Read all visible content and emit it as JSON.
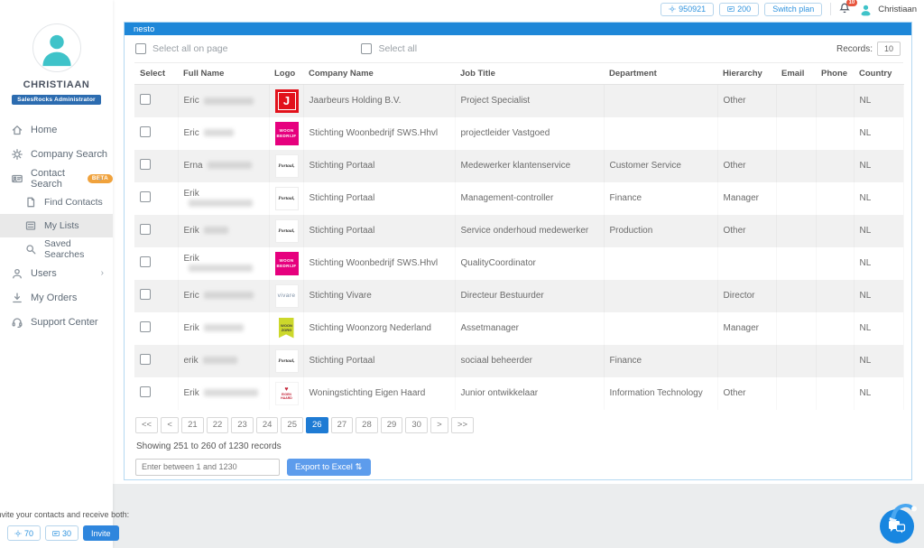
{
  "topbar": {
    "credits_value": "950921",
    "email_credits_value": "200",
    "switch_plan_label": "Switch plan",
    "notification_count": "10",
    "user_name": "Christiaan"
  },
  "sidebar": {
    "user_name": "CHRISTIAAN",
    "user_role_badge": "SalesRocks Administrator",
    "items": [
      {
        "label": "Home",
        "icon": "home-icon"
      },
      {
        "label": "Company Search",
        "icon": "gear-icon",
        "chevron": "›"
      },
      {
        "label": "Contact Search",
        "icon": "id-card-icon",
        "badge": "BETA",
        "chevron": "⌄"
      },
      {
        "label": "Find Contacts",
        "icon": "document-icon",
        "sub": true
      },
      {
        "label": "My Lists",
        "icon": "list-icon",
        "sub": true,
        "active": true
      },
      {
        "label": "Saved Searches",
        "icon": "search-icon",
        "sub": true
      },
      {
        "label": "Users",
        "icon": "user-icon",
        "chevron": "›"
      },
      {
        "label": "My Orders",
        "icon": "download-icon"
      },
      {
        "label": "Support Center",
        "icon": "headset-icon"
      }
    ]
  },
  "panel": {
    "title": "nesto",
    "select_all_on_page_label": "Select all on page",
    "select_all_label": "Select all",
    "records_label": "Records:",
    "records_value": "10",
    "table": {
      "columns": [
        "Select",
        "Full Name",
        "Logo",
        "Company Name",
        "Job Title",
        "Department",
        "Hierarchy",
        "Email",
        "Phone",
        "Country"
      ],
      "rows": [
        {
          "first_name": "Eric",
          "redacted_len": 10,
          "logo": "jaarbeurs",
          "company": "Jaarbeurs Holding B.V.",
          "job_title": "Project Specialist",
          "department": "",
          "hierarchy": "Other",
          "email": "",
          "phone": "",
          "country": "NL"
        },
        {
          "first_name": "Eric",
          "redacted_len": 6,
          "logo": "woonbedrijf",
          "company": "Stichting Woonbedrijf SWS.Hhvl",
          "job_title": "projectleider Vastgoed",
          "department": "",
          "hierarchy": "",
          "email": "",
          "phone": "",
          "country": "NL"
        },
        {
          "first_name": "Erna",
          "redacted_len": 9,
          "logo": "portaal",
          "company": "Stichting Portaal",
          "job_title": "Medewerker klantenservice",
          "department": "Customer Service",
          "hierarchy": "Other",
          "email": "",
          "phone": "",
          "country": "NL"
        },
        {
          "first_name": "Erik",
          "redacted_len": 13,
          "logo": "portaal",
          "company": "Stichting Portaal",
          "job_title": "Management-controller",
          "department": "Finance",
          "hierarchy": "Manager",
          "email": "",
          "phone": "",
          "country": "NL"
        },
        {
          "first_name": "Erik",
          "redacted_len": 5,
          "logo": "portaal",
          "company": "Stichting Portaal",
          "job_title": "Service onderhoud medewerker",
          "department": "Production",
          "hierarchy": "Other",
          "email": "",
          "phone": "",
          "country": "NL"
        },
        {
          "first_name": "Erik",
          "redacted_len": 13,
          "logo": "woonbedrijf",
          "company": "Stichting Woonbedrijf SWS.Hhvl",
          "job_title": "QualityCoordinator",
          "department": "",
          "hierarchy": "",
          "email": "",
          "phone": "",
          "country": "NL"
        },
        {
          "first_name": "Eric",
          "redacted_len": 10,
          "logo": "vivare",
          "company": "Stichting Vivare",
          "job_title": "Directeur Bestuurder",
          "department": "",
          "hierarchy": "Director",
          "email": "",
          "phone": "",
          "country": "NL"
        },
        {
          "first_name": "Erik",
          "redacted_len": 8,
          "logo": "woonzorg",
          "company": "Stichting Woonzorg Nederland",
          "job_title": "Assetmanager",
          "department": "",
          "hierarchy": "Manager",
          "email": "",
          "phone": "",
          "country": "NL"
        },
        {
          "first_name": "erik",
          "redacted_len": 7,
          "logo": "portaal",
          "company": "Stichting Portaal",
          "job_title": "sociaal beheerder",
          "department": "Finance",
          "hierarchy": "",
          "email": "",
          "phone": "",
          "country": "NL"
        },
        {
          "first_name": "Erik",
          "redacted_len": 11,
          "logo": "eigenhaard",
          "company": "Woningstichting Eigen Haard",
          "job_title": "Junior ontwikkelaar",
          "department": "Information Technology",
          "hierarchy": "Other",
          "email": "",
          "phone": "",
          "country": "NL"
        }
      ]
    },
    "logos": {
      "jaarbeurs": {
        "bg": "#e2111b",
        "color": "#ffffff",
        "lines": [
          "J"
        ]
      },
      "woonbedrijf": {
        "bg": "#e6007e",
        "color": "#ffffff",
        "lines": [
          "WOON",
          "BEDRIJF"
        ]
      },
      "portaal": {
        "bg": "#ffffff",
        "color": "#3a3a3a",
        "lines": [
          "Portaal,"
        ]
      },
      "vivare": {
        "bg": "#ffffff",
        "color": "#7d8fa5",
        "lines": [
          "vivare"
        ]
      },
      "woonzorg": {
        "bg": "#ffffff",
        "color": "#3c3c3c",
        "lines": [
          "WOON",
          "ZORG"
        ]
      },
      "eigenhaard": {
        "bg": "#ffffff",
        "color": "#c5273b",
        "lines": [
          "♥",
          "EIGEN HAARD"
        ]
      }
    },
    "pagination": {
      "first": "<<",
      "prev": "<",
      "next": ">",
      "last": ">>",
      "pages": [
        "21",
        "22",
        "23",
        "24",
        "25",
        "26",
        "27",
        "28",
        "29",
        "30"
      ],
      "active": "26"
    },
    "showing_text": "Showing 251 to 260 of 1230 records",
    "export": {
      "input_placeholder": "Enter between 1 and 1230",
      "button_label": "Export to Excel",
      "button_icon": "⇅"
    }
  },
  "invite_widget": {
    "text": "Invite your contacts and receive both:",
    "credits_value": "70",
    "email_value": "30",
    "button_label": "Invite"
  },
  "colors": {
    "accent_blue": "#1e87d8",
    "teal": "#3fc3c9",
    "beta_orange": "#f0a23c",
    "badge_red": "#e8553d",
    "role_badge_blue": "#2c6cb0"
  }
}
